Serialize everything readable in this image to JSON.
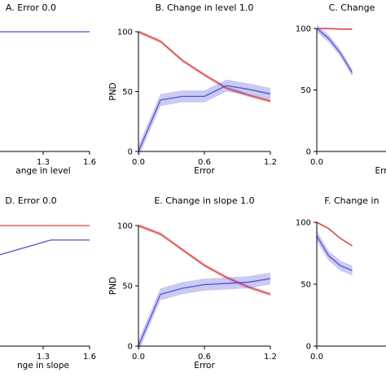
{
  "chart_data": [
    {
      "type": "line",
      "title": "A. Error 0.0",
      "xlabel": "ange in level",
      "ylabel": "",
      "xlim": [
        1.0,
        1.6
      ],
      "ylim": [
        0,
        100
      ],
      "xticks": [
        "1.3",
        "1.6"
      ],
      "yticks": [],
      "series": [
        {
          "color": "#5050d8",
          "band": 0,
          "x": [
            1.0,
            1.6
          ],
          "y": [
            100,
            100
          ]
        }
      ]
    },
    {
      "type": "line",
      "title": "B. Change in level 1.0",
      "xlabel": "Error",
      "ylabel": "PND",
      "xlim": [
        0.0,
        1.2
      ],
      "ylim": [
        0,
        100
      ],
      "xticks": [
        "0.0",
        "0.6",
        "1.2"
      ],
      "yticks": [
        "0",
        "50",
        "100"
      ],
      "series": [
        {
          "color": "#d84040",
          "band": 1.5,
          "x": [
            0.0,
            0.2,
            0.4,
            0.6,
            0.8,
            1.0,
            1.2
          ],
          "y": [
            100,
            92,
            76,
            64,
            53,
            47,
            42
          ]
        },
        {
          "color": "#5050d8",
          "band": 5,
          "x": [
            0.0,
            0.2,
            0.4,
            0.6,
            0.8,
            1.0,
            1.2
          ],
          "y": [
            0,
            43,
            46,
            46,
            55,
            52,
            48
          ]
        }
      ]
    },
    {
      "type": "line",
      "title": "C. Change",
      "xlabel": "Err",
      "ylabel": "",
      "xlim": [
        0.0,
        1.2
      ],
      "ylim": [
        0,
        100
      ],
      "xticks": [
        "0.0"
      ],
      "yticks": [
        "0",
        "50",
        "100"
      ],
      "series": [
        {
          "color": "#d84040",
          "band": 0.8,
          "x": [
            0.0,
            0.2,
            0.4,
            0.6
          ],
          "y": [
            100,
            100,
            99.5,
            99.5
          ]
        },
        {
          "color": "#5050d8",
          "band": 3,
          "x": [
            0.0,
            0.2,
            0.4,
            0.6
          ],
          "y": [
            100,
            92,
            80,
            64
          ]
        }
      ]
    },
    {
      "type": "line",
      "title": "D. Error 0.0",
      "xlabel": "nge in slope",
      "ylabel": "",
      "xlim": [
        1.0,
        1.6
      ],
      "ylim": [
        0,
        100
      ],
      "xticks": [
        "1.3",
        "1.6"
      ],
      "yticks": [],
      "series": [
        {
          "color": "#d84040",
          "band": 0,
          "x": [
            1.0,
            1.6
          ],
          "y": [
            100,
            100
          ]
        },
        {
          "color": "#5050d8",
          "band": 0,
          "x": [
            1.0,
            1.35,
            1.6
          ],
          "y": [
            75,
            88,
            88
          ]
        }
      ]
    },
    {
      "type": "line",
      "title": "E. Change in slope 1.0",
      "xlabel": "Error",
      "ylabel": "PND",
      "xlim": [
        0.0,
        1.2
      ],
      "ylim": [
        0,
        100
      ],
      "xticks": [
        "0.0",
        "0.6",
        "1.2"
      ],
      "yticks": [
        "0",
        "50",
        "100"
      ],
      "series": [
        {
          "color": "#d84040",
          "band": 1.5,
          "x": [
            0.0,
            0.2,
            0.4,
            0.6,
            0.8,
            1.0,
            1.2
          ],
          "y": [
            100,
            93,
            80,
            67,
            57,
            49,
            43
          ]
        },
        {
          "color": "#5050d8",
          "band": 5,
          "x": [
            0.0,
            0.2,
            0.4,
            0.6,
            0.8,
            1.0,
            1.2
          ],
          "y": [
            0,
            43,
            48,
            51,
            52,
            53,
            56
          ]
        }
      ]
    },
    {
      "type": "line",
      "title": "F. Change in",
      "xlabel": "",
      "ylabel": "",
      "xlim": [
        0.0,
        1.2
      ],
      "ylim": [
        0,
        100
      ],
      "xticks": [
        "0.0"
      ],
      "yticks": [
        "0",
        "50",
        "100"
      ],
      "series": [
        {
          "color": "#d84040",
          "band": 0.8,
          "x": [
            0.0,
            0.2,
            0.4,
            0.6
          ],
          "y": [
            100,
            95,
            87,
            81
          ]
        },
        {
          "color": "#5050d8",
          "band": 4,
          "x": [
            0.0,
            0.2,
            0.4,
            0.6
          ],
          "y": [
            89,
            73,
            65,
            61
          ]
        }
      ]
    }
  ]
}
